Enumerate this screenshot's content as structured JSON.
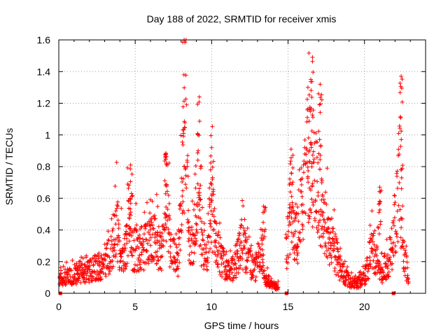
{
  "chart_data": {
    "type": "scatter",
    "title": "Day 188 of 2022, SRMTID for receiver xmis",
    "xlabel": "GPS time / hours",
    "ylabel": "SRMTID / TECUs",
    "xlim": [
      0,
      24
    ],
    "ylim": [
      0,
      1.6
    ],
    "grid": true,
    "marker": "+",
    "series_color": "#ff0000",
    "x_ticks": [
      {
        "value": 0,
        "label": "0"
      },
      {
        "value": 5,
        "label": "5"
      },
      {
        "value": 10,
        "label": "10"
      },
      {
        "value": 15,
        "label": "15"
      },
      {
        "value": 20,
        "label": "20"
      }
    ],
    "y_ticks": [
      {
        "value": 0,
        "label": "0"
      },
      {
        "value": 0.2,
        "label": "0.2"
      },
      {
        "value": 0.4,
        "label": "0.4"
      },
      {
        "value": 0.6,
        "label": "0.6"
      },
      {
        "value": 0.8,
        "label": "0.8"
      },
      {
        "value": 1.0,
        "label": "1"
      },
      {
        "value": 1.2,
        "label": "1.2"
      },
      {
        "value": 1.4,
        "label": "1.4"
      },
      {
        "value": 1.6,
        "label": "1.6"
      }
    ],
    "marked_x_positions": [
      0.1,
      14.9,
      21.9
    ],
    "envelope": [
      [
        0.0,
        0.1
      ],
      [
        1.0,
        0.12
      ],
      [
        2.0,
        0.15
      ],
      [
        3.0,
        0.2
      ],
      [
        3.5,
        0.3
      ],
      [
        3.8,
        0.45
      ],
      [
        4.0,
        0.3
      ],
      [
        4.3,
        0.25
      ],
      [
        4.6,
        0.55
      ],
      [
        4.8,
        0.3
      ],
      [
        5.5,
        0.3
      ],
      [
        6.2,
        0.35
      ],
      [
        6.8,
        0.3
      ],
      [
        7.0,
        0.75
      ],
      [
        7.3,
        0.3
      ],
      [
        7.8,
        0.2
      ],
      [
        8.1,
        0.8
      ],
      [
        8.3,
        1.25
      ],
      [
        8.5,
        0.4
      ],
      [
        8.8,
        0.35
      ],
      [
        9.1,
        0.9
      ],
      [
        9.3,
        0.35
      ],
      [
        9.6,
        0.2
      ],
      [
        10.0,
        0.65
      ],
      [
        10.2,
        0.35
      ],
      [
        10.6,
        0.25
      ],
      [
        11.0,
        0.15
      ],
      [
        11.5,
        0.18
      ],
      [
        12.0,
        0.35
      ],
      [
        12.3,
        0.25
      ],
      [
        12.8,
        0.15
      ],
      [
        13.2,
        0.3
      ],
      [
        13.5,
        0.1
      ],
      [
        14.0,
        0.06
      ],
      [
        14.3,
        0.04
      ],
      [
        14.9,
        0.3
      ],
      [
        15.2,
        0.55
      ],
      [
        15.6,
        0.4
      ],
      [
        16.0,
        0.65
      ],
      [
        16.5,
        0.95
      ],
      [
        16.8,
        0.75
      ],
      [
        17.3,
        0.45
      ],
      [
        17.7,
        0.4
      ],
      [
        18.0,
        0.3
      ],
      [
        18.5,
        0.15
      ],
      [
        19.0,
        0.08
      ],
      [
        19.5,
        0.07
      ],
      [
        20.0,
        0.1
      ],
      [
        20.5,
        0.3
      ],
      [
        20.8,
        0.2
      ],
      [
        21.2,
        0.12
      ],
      [
        21.5,
        0.2
      ],
      [
        21.8,
        0.3
      ],
      [
        22.1,
        0.55
      ],
      [
        22.3,
        0.8
      ],
      [
        22.6,
        0.25
      ],
      [
        22.9,
        0.1
      ]
    ],
    "peaks": [
      {
        "x": 8.2,
        "y": 1.6
      },
      {
        "x": 9.2,
        "y": 1.24
      },
      {
        "x": 10.0,
        "y": 0.92
      },
      {
        "x": 7.0,
        "y": 0.88
      },
      {
        "x": 4.7,
        "y": 0.81
      },
      {
        "x": 16.6,
        "y": 1.49
      },
      {
        "x": 17.1,
        "y": 1.32
      },
      {
        "x": 16.3,
        "y": 1.3
      },
      {
        "x": 15.2,
        "y": 0.91
      },
      {
        "x": 22.4,
        "y": 1.37
      },
      {
        "x": 21.0,
        "y": 0.67
      },
      {
        "x": 13.4,
        "y": 0.55
      }
    ]
  }
}
